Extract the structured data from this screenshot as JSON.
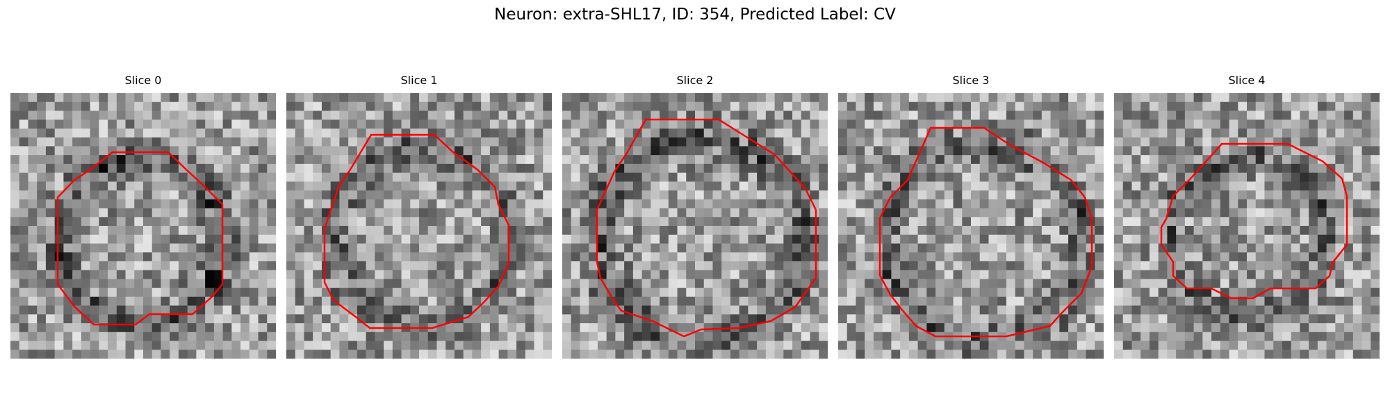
{
  "figure": {
    "title": "Neuron: extra-SHL17, ID: 354, Predicted Label: CV"
  },
  "contour_color": "#ff0000",
  "grid_size": 30,
  "panels": [
    {
      "title": "Slice 0",
      "seed": 11,
      "dark_ring": 0.85
    },
    {
      "title": "Slice 1",
      "seed": 23,
      "dark_ring": 0.55
    },
    {
      "title": "Slice 2",
      "seed": 37,
      "dark_ring": 0.7
    },
    {
      "title": "Slice 3",
      "seed": 41,
      "dark_ring": 0.6
    },
    {
      "title": "Slice 4",
      "seed": 59,
      "dark_ring": 0.65
    }
  ]
}
